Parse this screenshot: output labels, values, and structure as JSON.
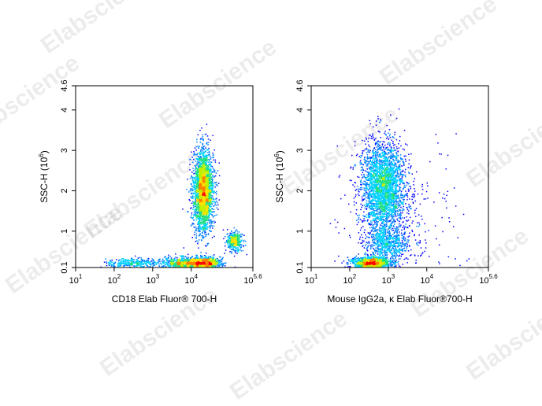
{
  "watermark": "Elabscience",
  "colors": {
    "density": [
      "#0000ff",
      "#0080ff",
      "#00d0ff",
      "#20e080",
      "#c0f000",
      "#ffe000",
      "#ff8000",
      "#ff0000"
    ]
  },
  "chart_data": [
    {
      "type": "scatter",
      "title": "",
      "xlabel": "CD18 Elab Fluor® 700-H",
      "ylabel": "SSC-H (10",
      "ylabel_sup": "6",
      "ylabel_close": ")",
      "x_scale": "log",
      "xlim": [
        10,
        398107
      ],
      "x_ticks": [
        {
          "base": "10",
          "exp": "1",
          "value": 10
        },
        {
          "base": "10",
          "exp": "2",
          "value": 100
        },
        {
          "base": "10",
          "exp": "3",
          "value": 1000
        },
        {
          "base": "10",
          "exp": "4",
          "value": 10000
        },
        {
          "base": "10",
          "exp": "5.6",
          "value": 398107
        }
      ],
      "ylim": [
        0.1,
        4.6
      ],
      "y_ticks": [
        {
          "label": "0.1",
          "value": 0.1
        },
        {
          "label": "1",
          "value": 1
        },
        {
          "label": "2",
          "value": 2
        },
        {
          "label": "3",
          "value": 3
        },
        {
          "label": "4",
          "value": 4
        },
        {
          "label": "4.6",
          "value": 4.6
        }
      ],
      "grid": false,
      "populations": [
        {
          "x_median": 20000,
          "y_median": 2.0,
          "x_spread_log": 0.13,
          "y_spread": 0.5,
          "share": 0.52
        },
        {
          "x_median": 20000,
          "y_median": 0.22,
          "x_spread_log": 0.22,
          "y_spread": 0.07,
          "share": 0.2
        },
        {
          "x_median": 6000,
          "y_median": 0.2,
          "x_spread_log": 0.3,
          "y_spread": 0.08,
          "share": 0.14
        },
        {
          "x_median": 130000,
          "y_median": 0.75,
          "x_spread_log": 0.1,
          "y_spread": 0.12,
          "share": 0.08
        },
        {
          "x_median": 300,
          "y_median": 0.22,
          "x_spread_log": 0.35,
          "y_spread": 0.06,
          "share": 0.06
        }
      ]
    },
    {
      "type": "scatter",
      "title": "",
      "xlabel": "Mouse IgG2a, κ  Elab Fluor®700-H",
      "ylabel": "SSC-H (10",
      "ylabel_sup": "6",
      "ylabel_close": ")",
      "x_scale": "log",
      "xlim": [
        10,
        398107
      ],
      "x_ticks": [
        {
          "base": "10",
          "exp": "1",
          "value": 10
        },
        {
          "base": "10",
          "exp": "2",
          "value": 100
        },
        {
          "base": "10",
          "exp": "3",
          "value": 1000
        },
        {
          "base": "10",
          "exp": "4",
          "value": 10000
        },
        {
          "base": "10",
          "exp": "5.6",
          "value": 398107
        }
      ],
      "ylim": [
        0.1,
        4.6
      ],
      "y_ticks": [
        {
          "label": "0.1",
          "value": 0.1
        },
        {
          "label": "1",
          "value": 1
        },
        {
          "label": "2",
          "value": 2
        },
        {
          "label": "3",
          "value": 3
        },
        {
          "label": "4",
          "value": 4
        },
        {
          "label": "4.6",
          "value": 4.6
        }
      ],
      "grid": false,
      "populations": [
        {
          "x_median": 700,
          "y_median": 2.1,
          "x_spread_log": 0.28,
          "y_spread": 0.55,
          "share": 0.55
        },
        {
          "x_median": 350,
          "y_median": 0.22,
          "x_spread_log": 0.25,
          "y_spread": 0.08,
          "share": 0.27
        },
        {
          "x_median": 900,
          "y_median": 0.7,
          "x_spread_log": 0.3,
          "y_spread": 0.2,
          "share": 0.12
        },
        {
          "x_median": 2000,
          "y_median": 1.3,
          "x_spread_log": 0.8,
          "y_spread": 0.9,
          "share": 0.06
        }
      ]
    }
  ]
}
